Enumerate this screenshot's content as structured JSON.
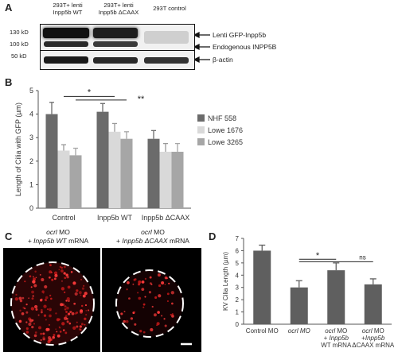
{
  "panelA": {
    "label": "A",
    "lanes": [
      {
        "line1": "293T+ lenti",
        "line2": "Inpp5b WT"
      },
      {
        "line1": "293T+ lenti",
        "line2": "Inpp5b ΔCAAX"
      },
      {
        "line1": "293T control",
        "line2": ""
      }
    ],
    "markers": [
      "130 kD",
      "100 kD",
      "50 kD"
    ],
    "band_labels": [
      "Lenti GFP-Inpp5b",
      "Endogenous INPP5B",
      "β-actin"
    ]
  },
  "panelB": {
    "label": "B",
    "significance": [
      "*",
      "**"
    ]
  },
  "panelC": {
    "label": "C",
    "left_line1_a": "ocrl",
    "left_line1_b": " MO",
    "left_line2_a": "+ ",
    "left_line2_b": "Inpp5b WT",
    "left_line2_c": " mRNA",
    "right_line1_a": "ocrl",
    "right_line1_b": " MO",
    "right_line2_a": "+ ",
    "right_line2_b": "Inpp5b ΔCAAX",
    "right_line2_c": " mRNA"
  },
  "panelD": {
    "label": "D",
    "significance": [
      "*",
      "ns"
    ],
    "cat_labels": {
      "c0": "Control MO",
      "c1": "ocrl MO",
      "c2_l1a": "ocrl",
      "c2_l1b": " MO",
      "c2_l2a": "+ ",
      "c2_l2b": "Inpp5b",
      "c2_l3": "WT mRNA",
      "c3_l1a": "ocrl",
      "c3_l1b": " MO",
      "c3_l2a": "+",
      "c3_l2b": "Inpp5b",
      "c3_l3": "ΔCAAX mRNA"
    }
  },
  "chart_data": [
    {
      "type": "bar",
      "categories": [
        "Control",
        "Inpp5b WT",
        "Inpp5b ΔCAAX"
      ],
      "series": [
        {
          "name": "NHF 558",
          "values": [
            4.0,
            4.1,
            2.95
          ],
          "errors": [
            0.5,
            0.35,
            0.35
          ],
          "color": "#6b6b6b"
        },
        {
          "name": "Lowe 1676",
          "values": [
            2.45,
            3.25,
            2.4
          ],
          "errors": [
            0.25,
            0.35,
            0.35
          ],
          "color": "#d9d9d9"
        },
        {
          "name": "Lowe 3265",
          "values": [
            2.25,
            2.95,
            2.4
          ],
          "errors": [
            0.3,
            0.3,
            0.35
          ],
          "color": "#a6a6a6"
        }
      ],
      "title": "",
      "xlabel": "",
      "ylabel": "Length of Cilia with GFP (µm)",
      "ylim": [
        0,
        5
      ],
      "yticks": [
        0,
        1,
        2,
        3,
        4,
        5
      ],
      "legend": "right",
      "grid": false
    },
    {
      "type": "bar",
      "categories": [
        "Control MO",
        "ocrl MO",
        "ocrl MO + Inpp5b WT mRNA",
        "ocrl MO +Inpp5b ΔCAAX mRNA"
      ],
      "values": [
        6.0,
        3.0,
        4.4,
        3.25
      ],
      "errors": [
        0.45,
        0.55,
        0.6,
        0.45
      ],
      "color": "#5f5f5f",
      "title": "",
      "xlabel": "",
      "ylabel": "KV Cilia Length (µm)",
      "ylim": [
        0,
        7
      ],
      "yticks": [
        0,
        1,
        2,
        3,
        4,
        5,
        6,
        7
      ],
      "grid": false
    }
  ]
}
